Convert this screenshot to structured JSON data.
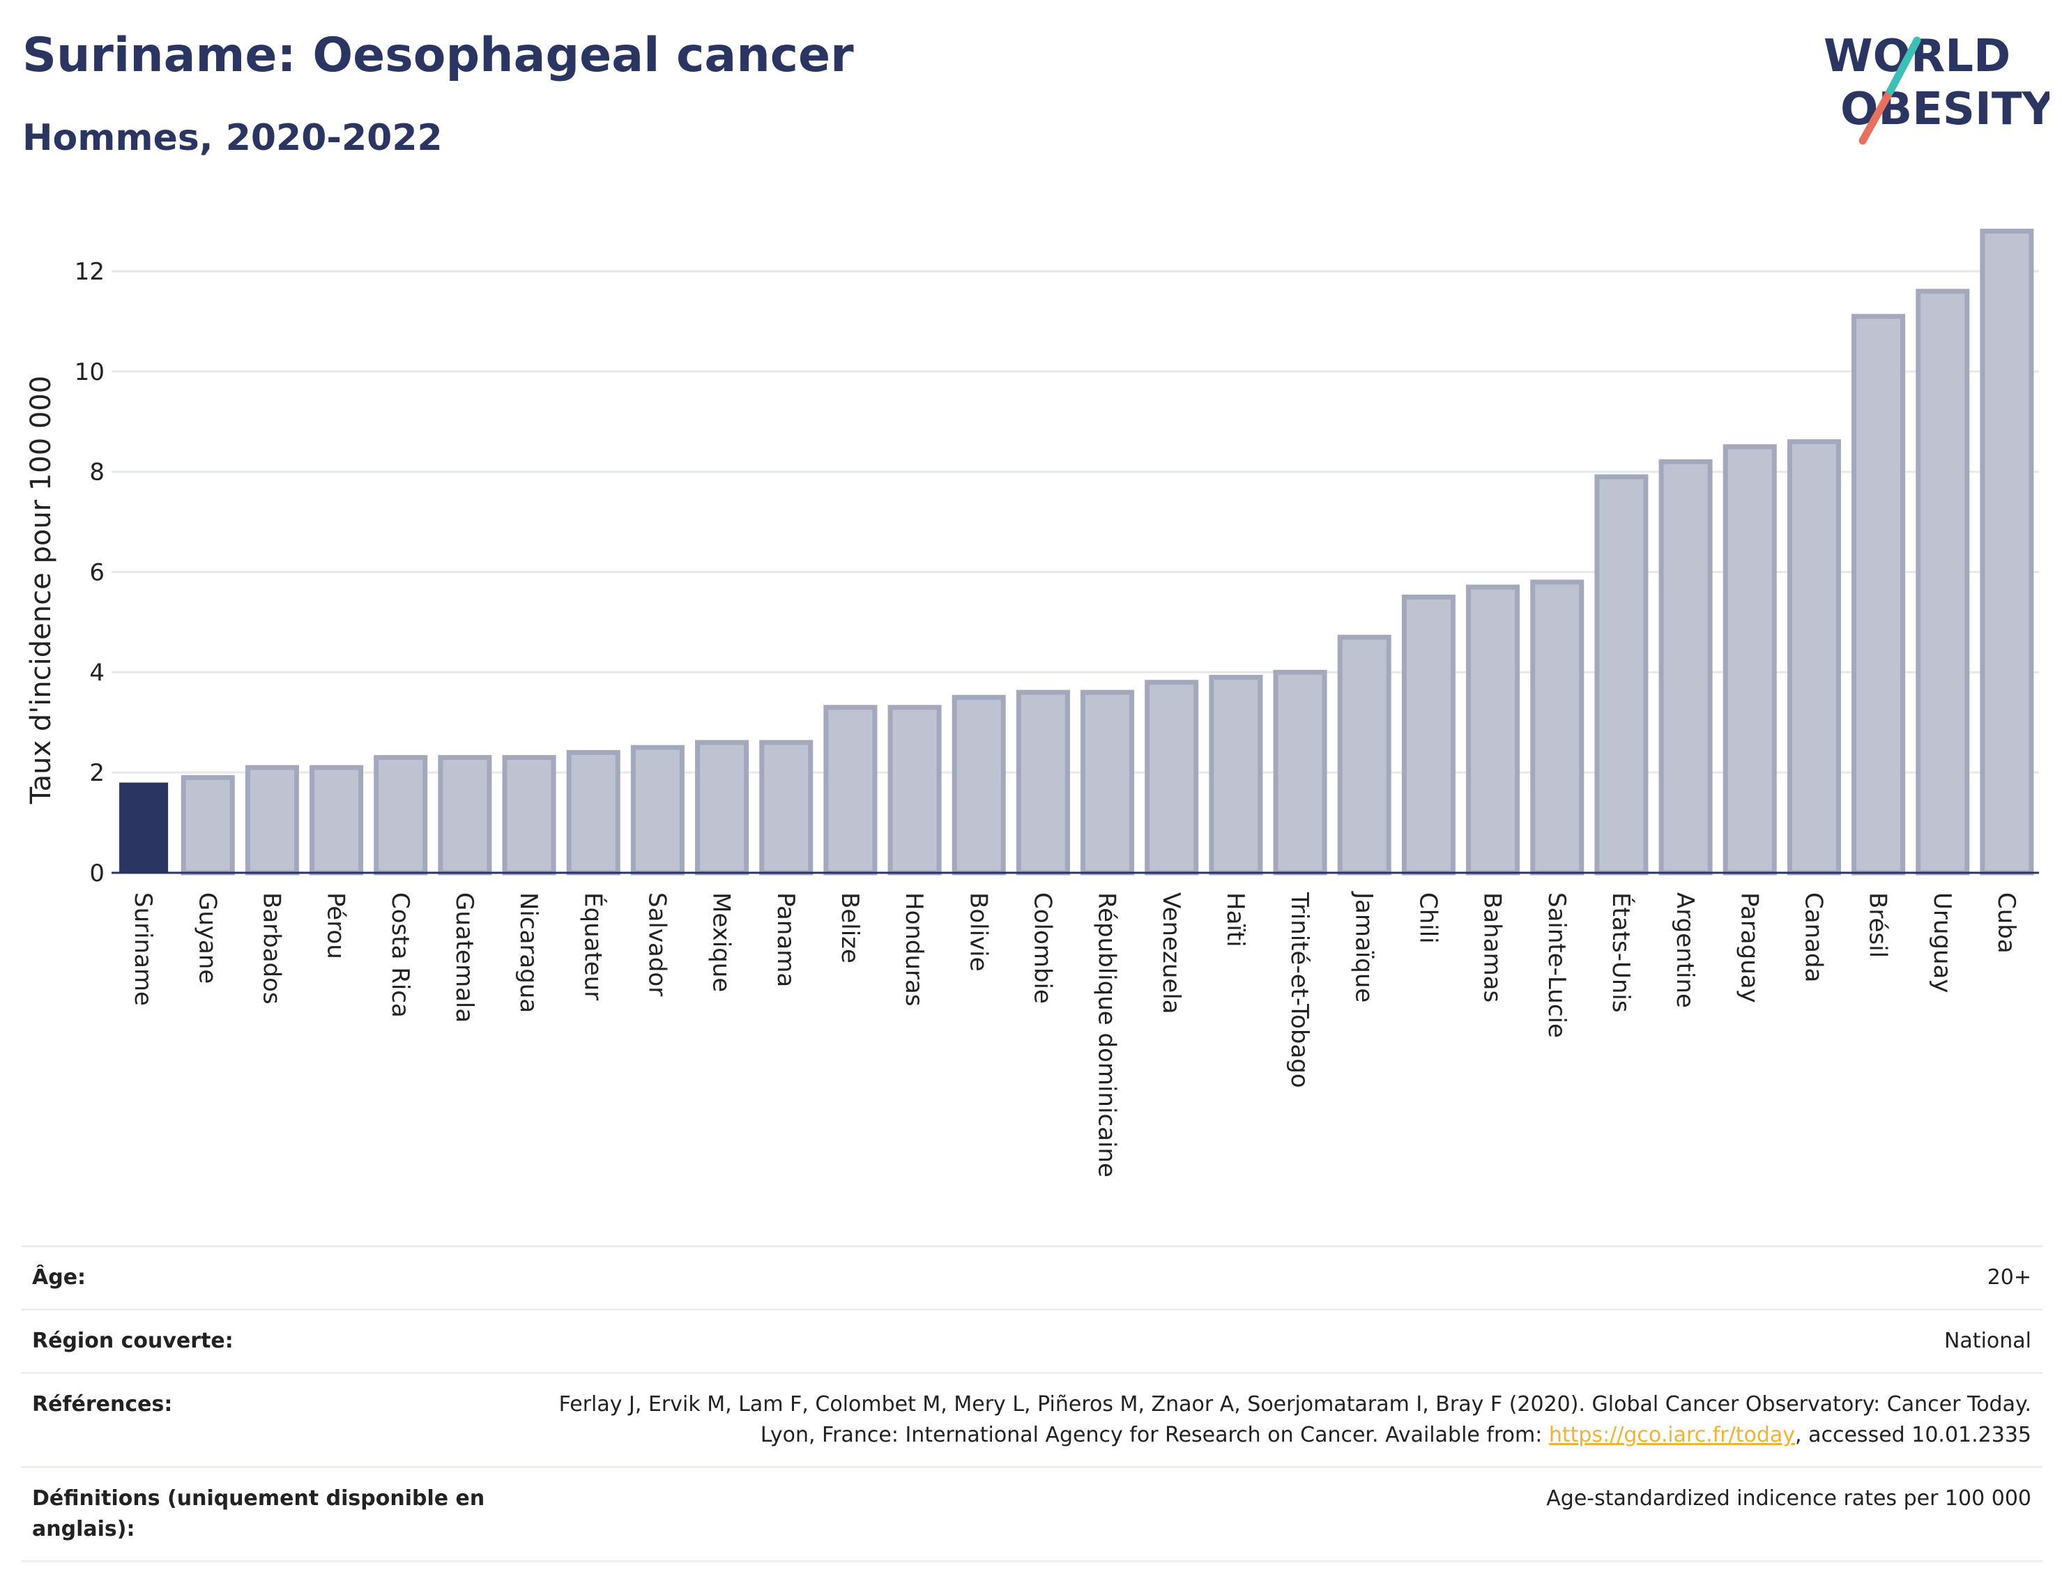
{
  "header": {
    "title": "Suriname: Oesophageal cancer",
    "subtitle": "Hommes, 2020-2022",
    "logo_line1": "WORLD",
    "logo_line2": "OBESITY"
  },
  "colors": {
    "highlight_bar": "#2b3561",
    "other_bar_fill": "#bfc2d0",
    "other_bar_stroke": "#a4a8bd",
    "grid": "#e6e8ee",
    "link": "#f2b233"
  },
  "chart_data": {
    "type": "bar",
    "title": "Suriname: Oesophageal cancer",
    "subtitle": "Hommes, 2020-2022",
    "ylabel": "Taux d'incidence pour 100 000",
    "xlabel": "",
    "ylim": [
      0,
      13.1
    ],
    "yticks": [
      0,
      2,
      4,
      6,
      8,
      10,
      12
    ],
    "grid": true,
    "highlight": "Suriname",
    "categories": [
      "Suriname",
      "Guyane",
      "Barbados",
      "Pérou",
      "Costa Rica",
      "Guatemala",
      "Nicaragua",
      "Équateur",
      "Salvador",
      "Mexique",
      "Panama",
      "Belize",
      "Honduras",
      "Bolivie",
      "Colombie",
      "République dominicaine",
      "Venezuela",
      "Haïti",
      "Trinité-et-Tobago",
      "Jamaïque",
      "Chili",
      "Bahamas",
      "Sainte-Lucie",
      "États-Unis",
      "Argentine",
      "Paraguay",
      "Canada",
      "Brésil",
      "Uruguay",
      "Cuba"
    ],
    "values": [
      1.8,
      1.9,
      2.1,
      2.1,
      2.3,
      2.3,
      2.3,
      2.4,
      2.5,
      2.6,
      2.6,
      3.3,
      3.3,
      3.5,
      3.6,
      3.6,
      3.8,
      3.9,
      4.0,
      4.7,
      5.5,
      5.7,
      5.8,
      7.9,
      8.2,
      8.5,
      8.6,
      11.1,
      11.6,
      12.8
    ]
  },
  "info": {
    "age_label": "Âge:",
    "age_value": "20+",
    "region_label": "Région couverte:",
    "region_value": "National",
    "refs_label": "Références:",
    "refs_text1": "Ferlay J, Ervik M, Lam F, Colombet M, Mery L, Piñeros M, Znaor A, Soerjomataram I, Bray F (2020). Global Cancer Observatory: Cancer Today. Lyon, France: International Agency for Research on Cancer. Available from: ",
    "refs_link": "https://gco.iarc.fr/today",
    "refs_text2": ", accessed 10.01.2335",
    "defs_label": "Définitions (uniquement disponible en anglais):",
    "defs_value": "Age-standardized indicence rates per 100 000"
  }
}
